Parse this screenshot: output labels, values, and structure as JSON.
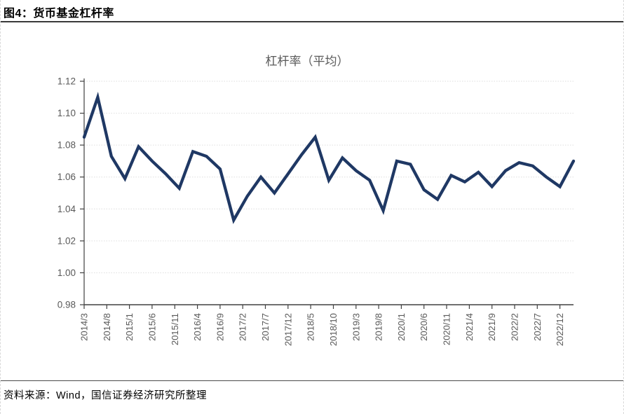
{
  "header": {
    "title": "图4：货币基金杠杆率"
  },
  "footer": {
    "source": "资料来源：Wind，国信证券经济研究所整理"
  },
  "chart_data": {
    "type": "line",
    "title": "杠杆率（平均）",
    "legend": "none",
    "grid": "horizontal-dotted",
    "ylim": [
      0.98,
      1.12
    ],
    "y_tick_labels": [
      "0.98",
      "1.00",
      "1.02",
      "1.04",
      "1.06",
      "1.08",
      "1.10",
      "1.12"
    ],
    "x_axis": {
      "start": "2014/3",
      "end": "2023/3",
      "total_months": 108,
      "tick_interval_months": 5,
      "tick_labels": [
        "2014/3",
        "2014/8",
        "2015/1",
        "2015/6",
        "2015/11",
        "2016/4",
        "2016/9",
        "2017/2",
        "2017/7",
        "2017/12",
        "2018/5",
        "2018/10",
        "2019/3",
        "2019/8",
        "2020/1",
        "2020/6",
        "2020/11",
        "2021/4",
        "2021/9",
        "2022/2",
        "2022/7",
        "2022/12"
      ]
    },
    "series": [
      {
        "name": "杠杆率（平均）",
        "x": [
          "2014/3",
          "2014/6",
          "2014/9",
          "2014/12",
          "2015/3",
          "2015/6",
          "2015/9",
          "2015/12",
          "2016/3",
          "2016/6",
          "2016/9",
          "2016/12",
          "2017/3",
          "2017/6",
          "2017/9",
          "2017/12",
          "2018/3",
          "2018/6",
          "2018/9",
          "2018/12",
          "2019/3",
          "2019/6",
          "2019/9",
          "2019/12",
          "2020/3",
          "2020/6",
          "2020/9",
          "2020/12",
          "2021/3",
          "2021/6",
          "2021/9",
          "2021/12",
          "2022/3",
          "2022/6",
          "2022/9",
          "2022/12",
          "2023/3"
        ],
        "values": [
          1.085,
          1.11,
          1.073,
          1.059,
          1.079,
          1.07,
          1.062,
          1.053,
          1.076,
          1.073,
          1.065,
          1.033,
          1.048,
          1.06,
          1.05,
          1.062,
          1.074,
          1.085,
          1.058,
          1.072,
          1.064,
          1.058,
          1.039,
          1.07,
          1.068,
          1.052,
          1.046,
          1.061,
          1.057,
          1.063,
          1.054,
          1.064,
          1.069,
          1.067,
          1.06,
          1.054,
          1.07
        ]
      }
    ],
    "colors": {
      "line": "#1F3864",
      "axis": "#404040",
      "axis_text": "#595959",
      "title_text": "#595959",
      "grid": "#DEDEDE"
    }
  }
}
